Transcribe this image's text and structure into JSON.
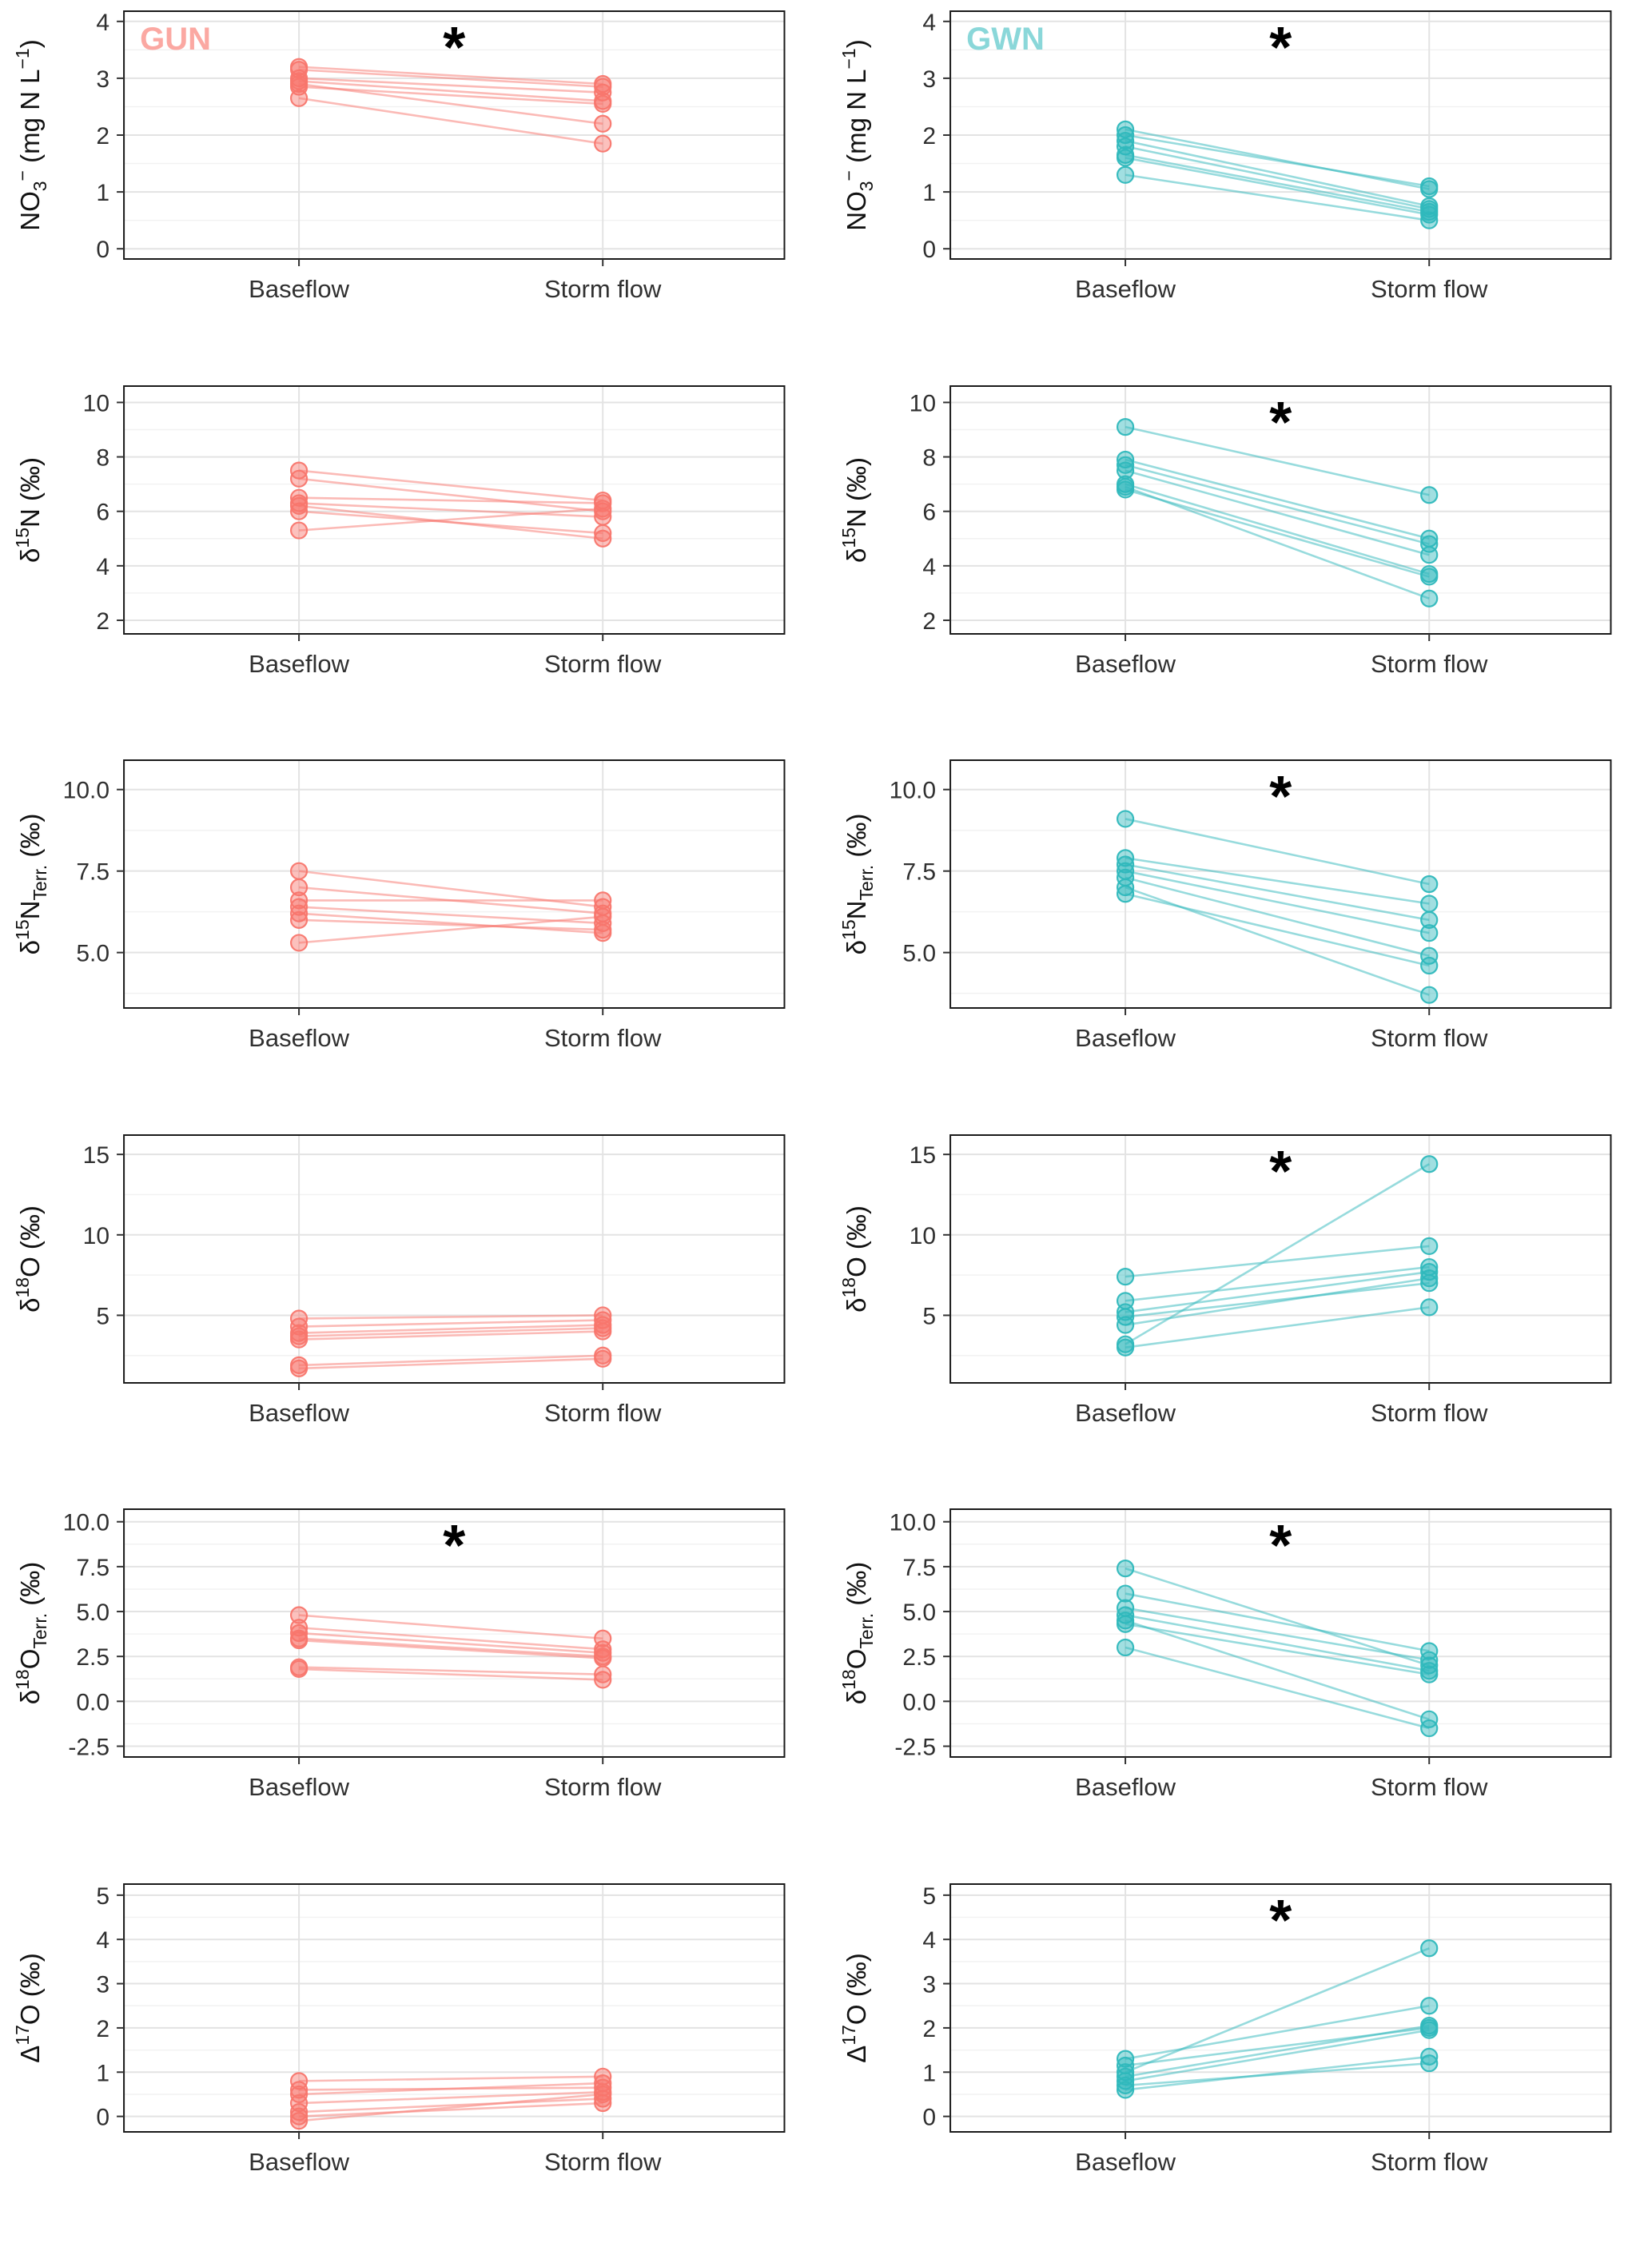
{
  "figure": {
    "groups": [
      {
        "id": "gun",
        "label": "GUN",
        "color": "#F8766D",
        "label_color": "#FBA8A2"
      },
      {
        "id": "gwn",
        "label": "GWN",
        "color": "#2FB8BC",
        "label_color": "#8AD7D9"
      }
    ],
    "x_categories": [
      "Baseflow",
      "Storm flow"
    ]
  },
  "chart_data": {
    "type": "line",
    "subtype": "paired-dot-line",
    "significance_marker": "*",
    "x_categories": [
      "Baseflow",
      "Storm flow"
    ],
    "panels": [
      {
        "id": "gun-no3",
        "group": "GUN",
        "corner_label": "GUN",
        "ylabel": "NO₃⁻ (mg N L⁻¹)",
        "ylabel_parts": [
          {
            "t": "NO"
          },
          {
            "t": "3",
            "s": "sub"
          },
          {
            "t": "−",
            "s": "sup"
          },
          {
            "t": " (mg N L"
          },
          {
            "t": "−1",
            "s": "sup"
          },
          {
            "t": ")"
          }
        ],
        "ylim": [
          -0.18,
          4.18
        ],
        "yticks": [
          0,
          1,
          2,
          3,
          4
        ],
        "ytick_labels": [
          "0",
          "1",
          "2",
          "3",
          "4"
        ],
        "significant": true,
        "pairs": [
          [
            3.2,
            2.9
          ],
          [
            3.15,
            2.85
          ],
          [
            3.0,
            2.75
          ],
          [
            2.95,
            2.6
          ],
          [
            2.9,
            2.2
          ],
          [
            2.85,
            2.55
          ],
          [
            2.65,
            1.85
          ]
        ]
      },
      {
        "id": "gwn-no3",
        "group": "GWN",
        "corner_label": "GWN",
        "ylabel": "NO₃⁻ (mg N L⁻¹)",
        "ylabel_parts": [
          {
            "t": "NO"
          },
          {
            "t": "3",
            "s": "sub"
          },
          {
            "t": "−",
            "s": "sup"
          },
          {
            "t": " (mg N L"
          },
          {
            "t": "−1",
            "s": "sup"
          },
          {
            "t": ")"
          }
        ],
        "ylim": [
          -0.18,
          4.18
        ],
        "yticks": [
          0,
          1,
          2,
          3,
          4
        ],
        "ytick_labels": [
          "0",
          "1",
          "2",
          "3",
          "4"
        ],
        "significant": true,
        "pairs": [
          [
            2.1,
            1.05
          ],
          [
            2.0,
            1.1
          ],
          [
            1.9,
            0.75
          ],
          [
            1.8,
            0.7
          ],
          [
            1.65,
            0.65
          ],
          [
            1.6,
            0.6
          ],
          [
            1.3,
            0.5
          ]
        ]
      },
      {
        "id": "gun-d15n",
        "group": "GUN",
        "ylabel": "δ¹⁵N (‰)",
        "ylabel_parts": [
          {
            "t": "δ"
          },
          {
            "t": "15",
            "s": "sup"
          },
          {
            "t": "N (‰)"
          }
        ],
        "ylim": [
          1.5,
          10.6
        ],
        "yticks": [
          2,
          4,
          6,
          8,
          10
        ],
        "ytick_labels": [
          "2",
          "4",
          "6",
          "8",
          "10"
        ],
        "significant": false,
        "pairs": [
          [
            7.5,
            6.4
          ],
          [
            7.2,
            6.0
          ],
          [
            6.5,
            6.3
          ],
          [
            6.3,
            5.8
          ],
          [
            6.2,
            5.0
          ],
          [
            6.0,
            5.2
          ],
          [
            5.3,
            6.1
          ]
        ]
      },
      {
        "id": "gwn-d15n",
        "group": "GWN",
        "ylabel": "δ¹⁵N (‰)",
        "ylabel_parts": [
          {
            "t": "δ"
          },
          {
            "t": "15",
            "s": "sup"
          },
          {
            "t": "N (‰)"
          }
        ],
        "ylim": [
          1.5,
          10.6
        ],
        "yticks": [
          2,
          4,
          6,
          8,
          10
        ],
        "ytick_labels": [
          "2",
          "4",
          "6",
          "8",
          "10"
        ],
        "significant": true,
        "pairs": [
          [
            9.1,
            6.6
          ],
          [
            7.9,
            5.0
          ],
          [
            7.7,
            4.8
          ],
          [
            7.5,
            4.4
          ],
          [
            7.0,
            3.7
          ],
          [
            6.9,
            2.8
          ],
          [
            6.8,
            3.6
          ]
        ]
      },
      {
        "id": "gun-d15n-terr",
        "group": "GUN",
        "ylabel": "δ¹⁵N_Terr. (‰)",
        "ylabel_parts": [
          {
            "t": "δ"
          },
          {
            "t": "15",
            "s": "sup"
          },
          {
            "t": "N"
          },
          {
            "t": "Terr.",
            "s": "sub"
          },
          {
            "t": " (‰)"
          }
        ],
        "ylim": [
          3.3,
          10.9
        ],
        "yticks": [
          5,
          7.5,
          10
        ],
        "ytick_labels": [
          "5.0",
          "7.5",
          "10.0"
        ],
        "significant": false,
        "pairs": [
          [
            7.5,
            6.4
          ],
          [
            7.0,
            6.2
          ],
          [
            6.6,
            6.6
          ],
          [
            6.4,
            5.9
          ],
          [
            6.2,
            5.6
          ],
          [
            6.0,
            5.7
          ],
          [
            5.3,
            6.1
          ]
        ]
      },
      {
        "id": "gwn-d15n-terr",
        "group": "GWN",
        "ylabel": "δ¹⁵N_Terr. (‰)",
        "ylabel_parts": [
          {
            "t": "δ"
          },
          {
            "t": "15",
            "s": "sup"
          },
          {
            "t": "N"
          },
          {
            "t": "Terr.",
            "s": "sub"
          },
          {
            "t": " (‰)"
          }
        ],
        "ylim": [
          3.3,
          10.9
        ],
        "yticks": [
          5,
          7.5,
          10
        ],
        "ytick_labels": [
          "5.0",
          "7.5",
          "10.0"
        ],
        "significant": true,
        "pairs": [
          [
            9.1,
            7.1
          ],
          [
            7.9,
            6.5
          ],
          [
            7.7,
            6.0
          ],
          [
            7.5,
            5.6
          ],
          [
            7.3,
            4.9
          ],
          [
            7.0,
            3.7
          ],
          [
            6.8,
            4.6
          ]
        ]
      },
      {
        "id": "gun-d18o",
        "group": "GUN",
        "ylabel": "δ¹⁸O (‰)",
        "ylabel_parts": [
          {
            "t": "δ"
          },
          {
            "t": "18",
            "s": "sup"
          },
          {
            "t": "O (‰)"
          }
        ],
        "ylim": [
          0.8,
          16.2
        ],
        "yticks": [
          5,
          10,
          15
        ],
        "ytick_labels": [
          "5",
          "10",
          "15"
        ],
        "significant": false,
        "pairs": [
          [
            4.8,
            5.0
          ],
          [
            4.3,
            4.7
          ],
          [
            3.9,
            4.4
          ],
          [
            3.7,
            4.2
          ],
          [
            3.5,
            4.0
          ],
          [
            1.9,
            2.5
          ],
          [
            1.7,
            2.3
          ]
        ]
      },
      {
        "id": "gwn-d18o",
        "group": "GWN",
        "ylabel": "δ¹⁸O (‰)",
        "ylabel_parts": [
          {
            "t": "δ"
          },
          {
            "t": "18",
            "s": "sup"
          },
          {
            "t": "O (‰)"
          }
        ],
        "ylim": [
          0.8,
          16.2
        ],
        "yticks": [
          5,
          10,
          15
        ],
        "ytick_labels": [
          "5",
          "10",
          "15"
        ],
        "significant": true,
        "pairs": [
          [
            7.4,
            9.3
          ],
          [
            5.9,
            8.0
          ],
          [
            5.2,
            7.7
          ],
          [
            4.9,
            7.0
          ],
          [
            4.4,
            7.3
          ],
          [
            3.2,
            14.4
          ],
          [
            3.0,
            5.5
          ]
        ]
      },
      {
        "id": "gun-d18o-terr",
        "group": "GUN",
        "ylabel": "δ¹⁸O_Terr. (‰)",
        "ylabel_parts": [
          {
            "t": "δ"
          },
          {
            "t": "18",
            "s": "sup"
          },
          {
            "t": "O"
          },
          {
            "t": "Terr.",
            "s": "sub"
          },
          {
            "t": " (‰)"
          }
        ],
        "ylim": [
          -3.1,
          10.7
        ],
        "yticks": [
          -2.5,
          0,
          2.5,
          5,
          7.5,
          10
        ],
        "ytick_labels": [
          "-2.5",
          "0.0",
          "2.5",
          "5.0",
          "7.5",
          "10.0"
        ],
        "significant": true,
        "pairs": [
          [
            4.8,
            3.5
          ],
          [
            4.1,
            2.9
          ],
          [
            3.8,
            2.7
          ],
          [
            3.5,
            2.5
          ],
          [
            3.4,
            2.4
          ],
          [
            1.9,
            1.5
          ],
          [
            1.8,
            1.2
          ]
        ]
      },
      {
        "id": "gwn-d18o-terr",
        "group": "GWN",
        "ylabel": "δ¹⁸O_Terr. (‰)",
        "ylabel_parts": [
          {
            "t": "δ"
          },
          {
            "t": "18",
            "s": "sup"
          },
          {
            "t": "O"
          },
          {
            "t": "Terr.",
            "s": "sub"
          },
          {
            "t": " (‰)"
          }
        ],
        "ylim": [
          -3.1,
          10.7
        ],
        "yticks": [
          -2.5,
          0,
          2.5,
          5,
          7.5,
          10
        ],
        "ytick_labels": [
          "-2.5",
          "0.0",
          "2.5",
          "5.0",
          "7.5",
          "10.0"
        ],
        "significant": true,
        "pairs": [
          [
            7.4,
            2.0
          ],
          [
            6.0,
            2.8
          ],
          [
            5.2,
            2.3
          ],
          [
            4.8,
            1.7
          ],
          [
            4.5,
            -1.0
          ],
          [
            4.3,
            1.5
          ],
          [
            3.0,
            -1.5
          ]
        ]
      },
      {
        "id": "gun-d17o",
        "group": "GUN",
        "ylabel": "Δ¹⁷O (‰)",
        "ylabel_parts": [
          {
            "t": "Δ"
          },
          {
            "t": "17",
            "s": "sup"
          },
          {
            "t": "O (‰)"
          }
        ],
        "ylim": [
          -0.35,
          5.25
        ],
        "yticks": [
          0,
          1,
          2,
          3,
          4,
          5
        ],
        "ytick_labels": [
          "0",
          "1",
          "2",
          "3",
          "4",
          "5"
        ],
        "significant": false,
        "pairs": [
          [
            0.8,
            0.9
          ],
          [
            0.6,
            0.65
          ],
          [
            0.5,
            0.75
          ],
          [
            0.3,
            0.55
          ],
          [
            0.1,
            0.4
          ],
          [
            0.0,
            0.3
          ],
          [
            -0.1,
            0.5
          ]
        ]
      },
      {
        "id": "gwn-d17o",
        "group": "GWN",
        "ylabel": "Δ¹⁷O (‰)",
        "ylabel_parts": [
          {
            "t": "Δ"
          },
          {
            "t": "17",
            "s": "sup"
          },
          {
            "t": "O (‰)"
          }
        ],
        "ylim": [
          -0.35,
          5.25
        ],
        "yticks": [
          0,
          1,
          2,
          3,
          4,
          5
        ],
        "ytick_labels": [
          "0",
          "1",
          "2",
          "3",
          "4",
          "5"
        ],
        "significant": true,
        "pairs": [
          [
            1.3,
            2.5
          ],
          [
            1.15,
            2.0
          ],
          [
            1.0,
            3.8
          ],
          [
            0.9,
            2.05
          ],
          [
            0.8,
            1.95
          ],
          [
            0.7,
            1.2
          ],
          [
            0.6,
            1.35
          ]
        ]
      }
    ]
  }
}
